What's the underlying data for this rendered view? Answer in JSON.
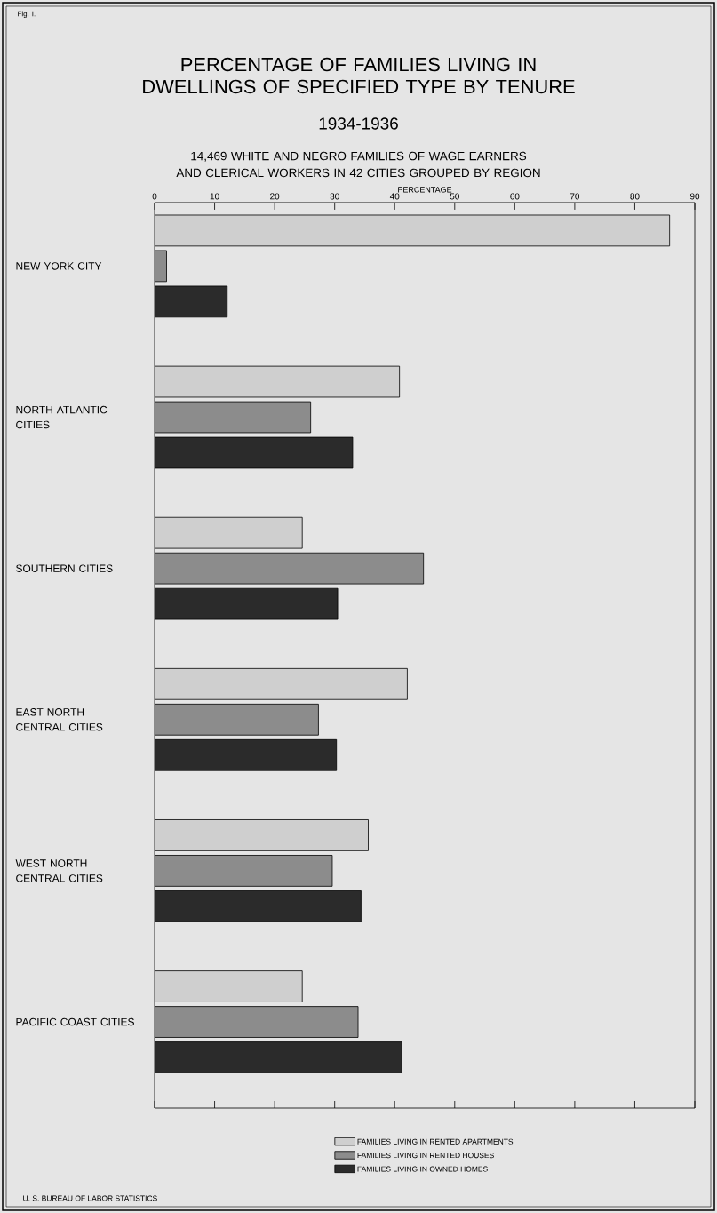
{
  "chart_data": {
    "type": "bar",
    "orientation": "horizontal",
    "title": "PERCENTAGE OF FAMILIES LIVING IN DWELLINGS OF SPECIFIED TYPE BY TENURE",
    "subtitle": "1934-1936",
    "annotations": [
      "Fig. I.",
      "14,469 WHITE AND NEGRO FAMILIES OF WAGE EARNERS AND CLERICAL WORKERS IN 42 CITIES GROUPED BY REGION",
      "U. S. BUREAU OF LABOR STATISTICS"
    ],
    "xlabel": "PERCENTAGE",
    "categories": [
      "NEW YORK CITY",
      "NORTH ATLANTIC CITIES",
      "SOUTHERN CITIES",
      "EAST NORTH CENTRAL CITIES",
      "WEST NORTH CENTRAL CITIES",
      "PACIFIC COAST CITIES"
    ],
    "series": [
      {
        "name": "FAMILIES LIVING IN RENTED APARTMENTS",
        "color": "#cfcfcf",
        "values": [
          85.8,
          40.8,
          24.6,
          42.1,
          35.6,
          24.6
        ]
      },
      {
        "name": "FAMILIES LIVING IN RENTED HOUSES",
        "color": "#8c8c8c",
        "values": [
          2.0,
          26.0,
          44.8,
          27.3,
          29.6,
          33.9
        ]
      },
      {
        "name": "FAMILIES LIVING IN OWNED HOMES",
        "color": "#2b2b2b",
        "values": [
          12.1,
          33.0,
          30.5,
          30.3,
          34.4,
          41.2
        ]
      }
    ],
    "xlim": [
      0,
      90
    ],
    "xticks": [
      0,
      10,
      20,
      30,
      40,
      50,
      60,
      70,
      80,
      90
    ],
    "legend": "bottom"
  }
}
